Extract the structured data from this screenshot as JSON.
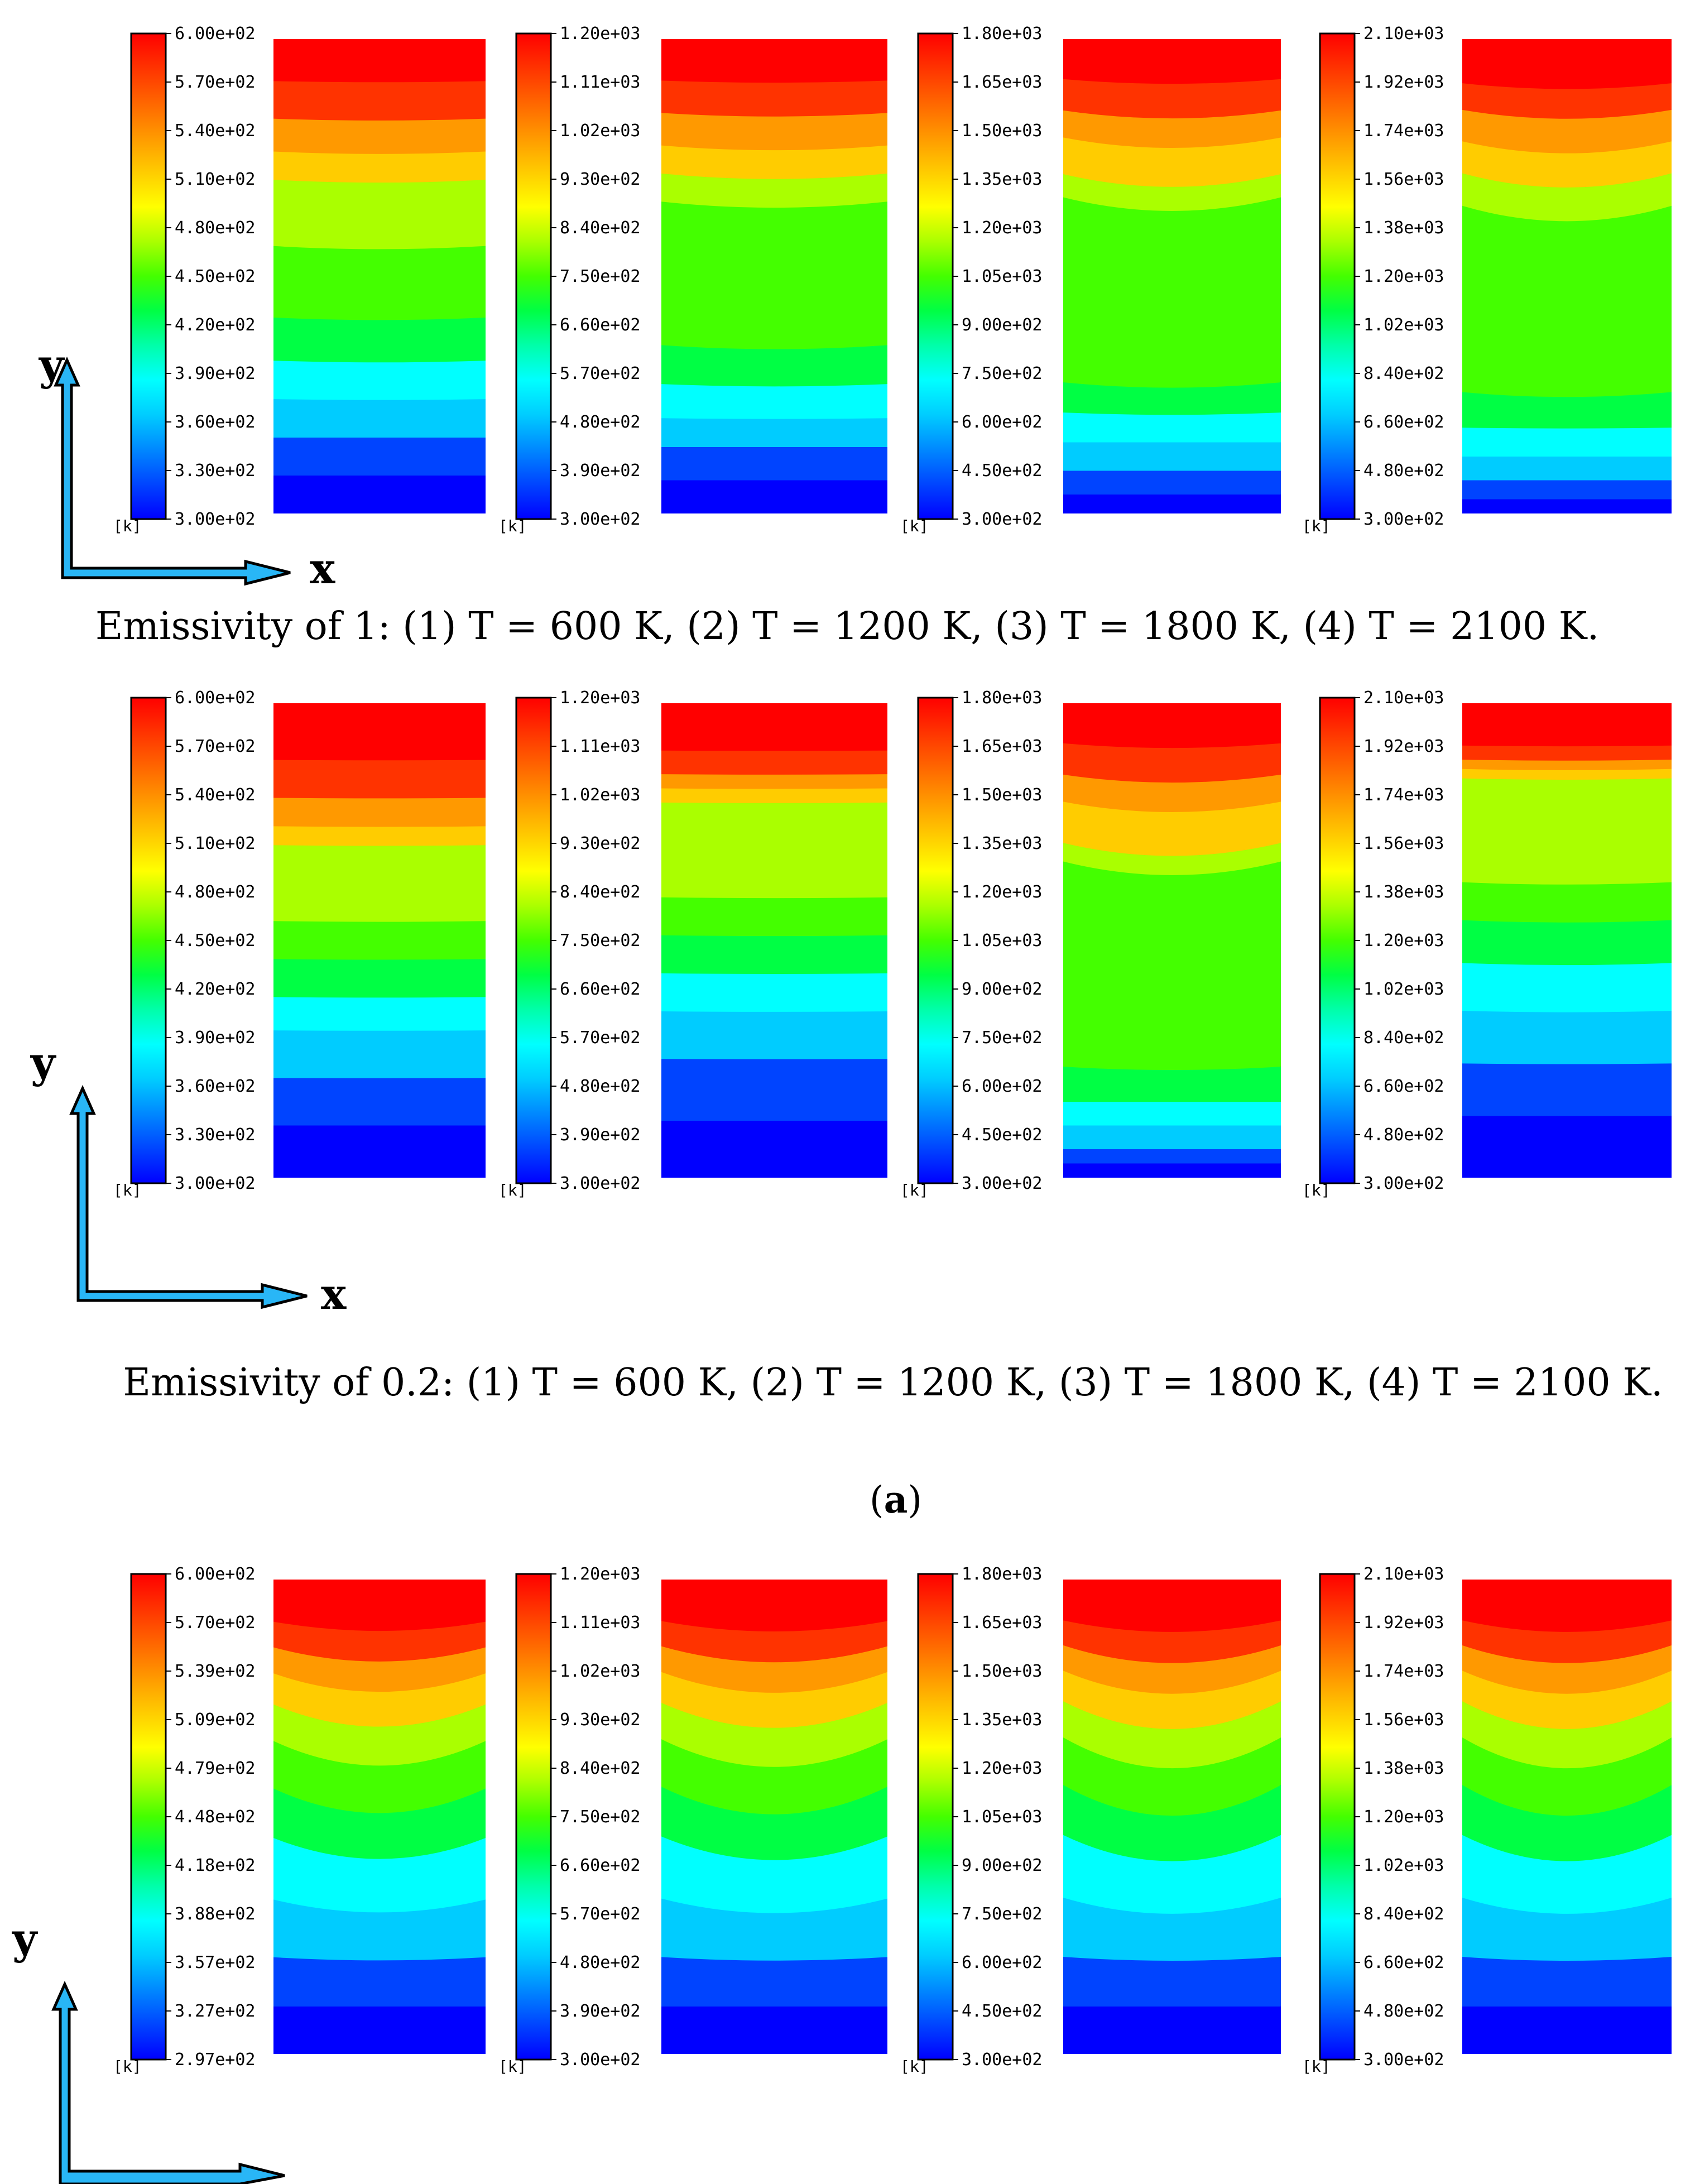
{
  "figure": {
    "panel_label": "a",
    "caption_emissivity_1": "Emissivity of 1: (1) T = 600 K, (2) T = 1200 K, (3) T = 1800 K, (4) T = 2100 K.",
    "caption_emissivity_02": "Emissivity of 0.2: (1) T = 600 K, (2) T = 1200 K, (3) T = 1800 K, (4) T = 2100 K.",
    "axis_x_label": "x",
    "axis_y_label": "y"
  },
  "colorbar_unit": "[k]",
  "colormap": [
    "#0000ff",
    "#0044ff",
    "#0088ff",
    "#00ccff",
    "#00ffff",
    "#00ffaa",
    "#00ff44",
    "#44ff00",
    "#aaff00",
    "#ffff00",
    "#ffcc00",
    "#ff9900",
    "#ff6600",
    "#ff3300",
    "#ff0000"
  ],
  "rows": [
    {
      "name": "emissivity-1",
      "plots": [
        {
          "condition": "T = 600 K",
          "ticks": [
            "6.00e+02",
            "5.70e+02",
            "5.40e+02",
            "5.10e+02",
            "4.80e+02",
            "4.50e+02",
            "4.20e+02",
            "3.90e+02",
            "3.60e+02",
            "3.30e+02",
            "3.00e+02"
          ],
          "band_fractions": [
            0.09,
            0.08,
            0.07,
            0.06,
            0.14,
            0.15,
            0.09,
            0.08,
            0.08,
            0.08,
            0.08
          ],
          "curvature": 0.2
        },
        {
          "condition": "T = 1200 K",
          "ticks": [
            "1.20e+03",
            "1.11e+03",
            "1.02e+03",
            "9.30e+02",
            "8.40e+02",
            "7.50e+02",
            "6.60e+02",
            "5.70e+02",
            "4.80e+02",
            "3.90e+02",
            "3.00e+02"
          ],
          "band_fractions": [
            0.09,
            0.07,
            0.07,
            0.06,
            0.06,
            0.3,
            0.08,
            0.07,
            0.06,
            0.07,
            0.07
          ],
          "curvature": 0.4
        },
        {
          "condition": "T = 1800 K",
          "ticks": [
            "1.80e+03",
            "1.65e+03",
            "1.50e+03",
            "1.35e+03",
            "1.20e+03",
            "1.05e+03",
            "9.00e+02",
            "7.50e+02",
            "6.00e+02",
            "4.50e+02",
            "3.00e+02"
          ],
          "band_fractions": [
            0.09,
            0.07,
            0.06,
            0.08,
            0.05,
            0.38,
            0.06,
            0.06,
            0.06,
            0.05,
            0.04
          ],
          "curvature": 0.9
        },
        {
          "condition": "T = 2100 K",
          "ticks": [
            "2.10e+03",
            "1.92e+03",
            "1.74e+03",
            "1.56e+03",
            "1.38e+03",
            "1.20e+03",
            "1.02e+03",
            "8.40e+02",
            "6.60e+02",
            "4.80e+02",
            "3.00e+02"
          ],
          "band_fractions": [
            0.1,
            0.06,
            0.07,
            0.07,
            0.07,
            0.38,
            0.07,
            0.06,
            0.05,
            0.04,
            0.03
          ],
          "curvature": 1.0
        }
      ]
    },
    {
      "name": "emissivity-0.2",
      "plots": [
        {
          "condition": "T = 600 K",
          "ticks": [
            "6.00e+02",
            "5.70e+02",
            "5.40e+02",
            "5.10e+02",
            "4.80e+02",
            "4.50e+02",
            "4.20e+02",
            "3.90e+02",
            "3.60e+02",
            "3.30e+02",
            "3.00e+02"
          ],
          "band_fractions": [
            0.12,
            0.08,
            0.06,
            0.04,
            0.16,
            0.08,
            0.08,
            0.07,
            0.1,
            0.1,
            0.11
          ],
          "curvature": 0.05
        },
        {
          "condition": "T = 1200 K",
          "ticks": [
            "1.20e+03",
            "1.11e+03",
            "1.02e+03",
            "9.30e+02",
            "8.40e+02",
            "7.50e+02",
            "6.60e+02",
            "5.70e+02",
            "4.80e+02",
            "3.90e+02",
            "3.00e+02"
          ],
          "band_fractions": [
            0.1,
            0.05,
            0.03,
            0.03,
            0.2,
            0.08,
            0.08,
            0.08,
            0.1,
            0.13,
            0.12
          ],
          "curvature": 0.05
        },
        {
          "condition": "T = 1800 K",
          "ticks": [
            "1.80e+03",
            "1.65e+03",
            "1.50e+03",
            "1.35e+03",
            "1.20e+03",
            "1.05e+03",
            "9.00e+02",
            "7.50e+02",
            "6.00e+02",
            "4.50e+02",
            "3.00e+02"
          ],
          "band_fractions": [
            0.09,
            0.07,
            0.06,
            0.09,
            0.04,
            0.42,
            0.07,
            0.05,
            0.05,
            0.03,
            0.03
          ],
          "curvature": 0.9
        },
        {
          "condition": "T = 2100 K",
          "ticks": [
            "2.10e+03",
            "1.92e+03",
            "1.74e+03",
            "1.56e+03",
            "1.38e+03",
            "1.20e+03",
            "1.02e+03",
            "8.40e+02",
            "6.60e+02",
            "4.80e+02",
            "3.00e+02"
          ],
          "band_fractions": [
            0.09,
            0.03,
            0.02,
            0.02,
            0.22,
            0.08,
            0.09,
            0.1,
            0.11,
            0.11,
            0.13
          ],
          "curvature": 0.15
        }
      ]
    },
    {
      "name": "panel-b",
      "plots": [
        {
          "condition": "T = 600 K",
          "ticks": [
            "6.00e+02",
            "5.70e+02",
            "5.39e+02",
            "5.09e+02",
            "4.79e+02",
            "4.48e+02",
            "4.18e+02",
            "3.88e+02",
            "3.57e+02",
            "3.27e+02",
            "2.97e+02"
          ],
          "band_fractions": [
            0.1,
            0.06,
            0.06,
            0.07,
            0.08,
            0.1,
            0.1,
            0.12,
            0.11,
            0.1,
            0.1
          ],
          "curvature": 1.6
        },
        {
          "condition": "T = 1200 K",
          "ticks": [
            "1.20e+03",
            "1.11e+03",
            "1.02e+03",
            "9.30e+02",
            "8.40e+02",
            "7.50e+02",
            "6.60e+02",
            "5.70e+02",
            "4.80e+02",
            "3.90e+02",
            "3.00e+02"
          ],
          "band_fractions": [
            0.1,
            0.06,
            0.06,
            0.07,
            0.08,
            0.1,
            0.1,
            0.12,
            0.11,
            0.1,
            0.1
          ],
          "curvature": 1.8
        },
        {
          "condition": "T = 1800 K",
          "ticks": [
            "1.80e+03",
            "1.65e+03",
            "1.50e+03",
            "1.35e+03",
            "1.20e+03",
            "1.05e+03",
            "9.00e+02",
            "7.50e+02",
            "6.00e+02",
            "4.50e+02",
            "3.00e+02"
          ],
          "band_fractions": [
            0.1,
            0.06,
            0.06,
            0.07,
            0.08,
            0.1,
            0.1,
            0.12,
            0.11,
            0.1,
            0.1
          ],
          "curvature": 2.0
        },
        {
          "condition": "T = 2100 K",
          "ticks": [
            "2.10e+03",
            "1.92e+03",
            "1.74e+03",
            "1.56e+03",
            "1.38e+03",
            "1.20e+03",
            "1.02e+03",
            "8.40e+02",
            "6.60e+02",
            "4.80e+02",
            "3.00e+02"
          ],
          "band_fractions": [
            0.1,
            0.06,
            0.06,
            0.07,
            0.08,
            0.1,
            0.1,
            0.12,
            0.11,
            0.1,
            0.1
          ],
          "curvature": 2.0
        }
      ]
    }
  ]
}
